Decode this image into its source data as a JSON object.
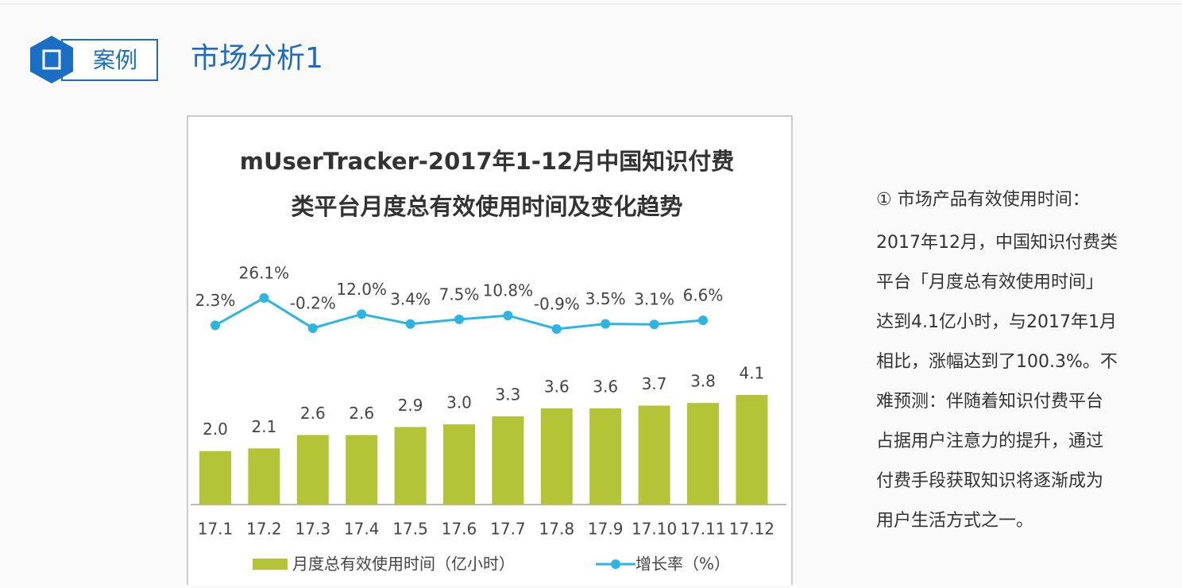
{
  "header": {
    "tag": "案例",
    "title": "市场分析1"
  },
  "chart_data": {
    "type": "bar_line",
    "title": [
      "mUserTracker-2017年1-12月中国知识付费",
      "类平台月度总有效使用时间及变化趋势"
    ],
    "categories": [
      "17.1",
      "17.2",
      "17.3",
      "17.4",
      "17.5",
      "17.6",
      "17.7",
      "17.8",
      "17.9",
      "17.10",
      "17.11",
      "17.12"
    ],
    "series": [
      {
        "name": "月度总有效使用时间（亿小时）",
        "type": "bar",
        "color": "#b3c437",
        "values": [
          2.0,
          2.1,
          2.6,
          2.6,
          2.9,
          3.0,
          3.3,
          3.6,
          3.6,
          3.7,
          3.8,
          4.1
        ],
        "value_labels": [
          "2.0",
          "2.1",
          "2.6",
          "2.6",
          "2.9",
          "3.0",
          "3.3",
          "3.6",
          "3.6",
          "3.7",
          "3.8",
          "4.1"
        ]
      },
      {
        "name": "增长率（%）",
        "type": "line",
        "color": "#2cb5e3",
        "values": [
          2.3,
          26.1,
          -0.2,
          12.0,
          3.4,
          7.5,
          10.8,
          -0.9,
          3.5,
          3.1,
          6.6,
          null
        ],
        "value_labels": [
          "2.3%",
          "26.1%",
          "-0.2%",
          "12.0%",
          "3.4%",
          "7.5%",
          "10.8%",
          "-0.9%",
          "3.5%",
          "3.1%",
          "6.6%",
          null
        ]
      }
    ]
  },
  "notes": {
    "heading": "① 市场产品有效使用时间：",
    "lines": [
      "2017年12月，中国知识付费类",
      "平台「月度总有效使用时间」",
      "达到4.1亿小时，与2017年1月",
      "相比，涨幅达到了100.3%。不",
      "难预测：伴随着知识付费平台",
      "占据用户注意力的提升，通过",
      "付费手段获取知识将逐渐成为",
      "用户生活方式之一。"
    ]
  }
}
